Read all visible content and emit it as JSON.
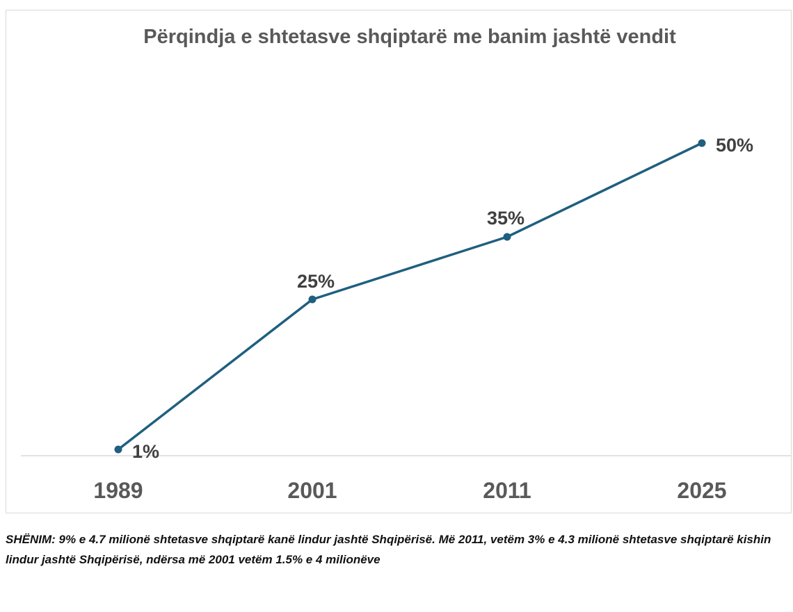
{
  "chart_data": {
    "type": "line",
    "title": "Përqindja e shtetasve shqiptarë me banim jashtë vendit",
    "categories": [
      "1989",
      "2001",
      "2011",
      "2025"
    ],
    "series": [
      {
        "values": [
          1,
          25,
          35,
          50
        ],
        "labels": [
          "1%",
          "25%",
          "35%",
          "50%"
        ]
      }
    ],
    "ylim": [
      0,
      56
    ],
    "grid": false,
    "legend": "none"
  },
  "colors": {
    "line": "#1f5f7f",
    "title": "#595959",
    "labels": "#404040",
    "axis_text": "#595959",
    "axis_line": "#d9d9d9"
  },
  "note": "SHËNIM: 9% e 4.7 milionë shtetasve shqiptarë kanë lindur jashtë Shqipërisë. Më 2011, vetëm 3% e 4.3 milionë shtetasve shqiptarë kishin lindur jashtë Shqipërisë, ndërsa më 2001 vetëm 1.5% e 4 milionëve"
}
